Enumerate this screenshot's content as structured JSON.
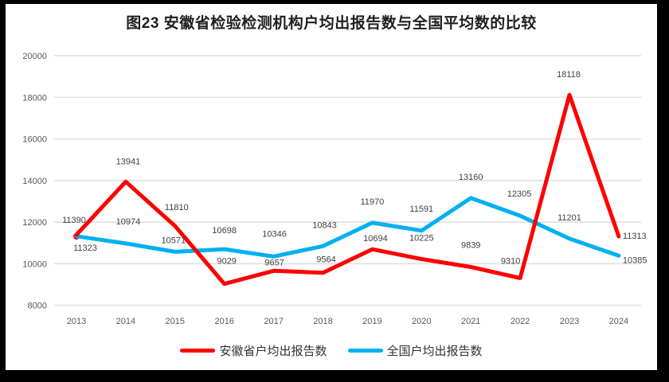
{
  "title": "图23 安徽省检验检测机构户均出报告数与全国平均数的比较",
  "chart_data": {
    "type": "line",
    "categories": [
      "2013",
      "2014",
      "2015",
      "2016",
      "2017",
      "2018",
      "2019",
      "2020",
      "2021",
      "2022",
      "2023",
      "2024"
    ],
    "series": [
      {
        "name": "安徽省户均出报告数",
        "color": "#FF0000",
        "values": [
          11390,
          13941,
          11810,
          9029,
          9657,
          9564,
          10694,
          10225,
          9839,
          9310,
          18118,
          11313
        ]
      },
      {
        "name": "全国户均出报告数",
        "color": "#00B0F0",
        "values": [
          11323,
          10974,
          10571,
          10698,
          10346,
          10843,
          11970,
          11591,
          13160,
          12305,
          11201,
          10385
        ]
      }
    ],
    "title": "图23 安徽省检验检测机构户均出报告数与全国平均数的比较",
    "xlabel": "",
    "ylabel": "",
    "ylim": [
      8000,
      20000
    ],
    "y_tick_step": 2000,
    "y_tick_labels": [
      "8000",
      "10000",
      "12000",
      "14000",
      "16000",
      "18000",
      "20000"
    ],
    "grid": "horizontal",
    "legend_position": "bottom",
    "data_labels_shown": true
  }
}
